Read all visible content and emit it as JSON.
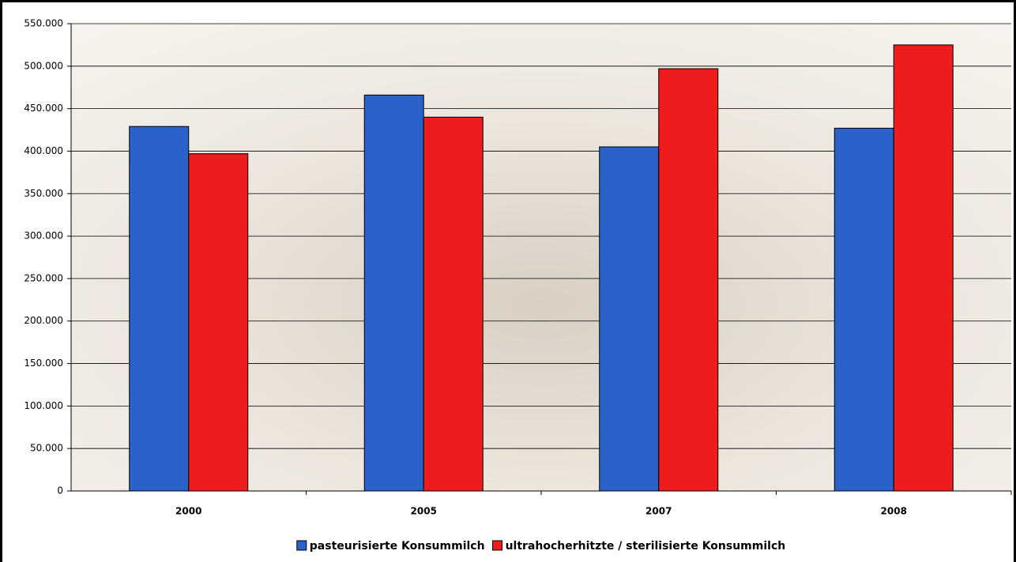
{
  "chart_data": {
    "type": "bar",
    "categories": [
      "2000",
      "2005",
      "2007",
      "2008"
    ],
    "series": [
      {
        "name": "pasteurisierte Konsummilch",
        "color": "#2a62c9",
        "values": [
          429000,
          466000,
          405000,
          427000
        ]
      },
      {
        "name": "ultrahocherhitzte / sterilisierte Konsummilch",
        "color": "#ee1c1c",
        "values": [
          397000,
          440000,
          497000,
          525000
        ]
      }
    ],
    "ylim": [
      0,
      550000
    ],
    "yticks": [
      0,
      {
        "value": 50000,
        "label": "50.000"
      },
      {
        "value": 100000,
        "label": "100.000"
      },
      {
        "value": 150000,
        "label": "150.000"
      },
      {
        "value": 200000,
        "label": "200.000"
      },
      {
        "value": 250000,
        "label": "250.000"
      },
      {
        "value": 300000,
        "label": "300.000"
      },
      {
        "value": 350000,
        "label": "350.000"
      },
      {
        "value": 400000,
        "label": "400.000"
      },
      {
        "value": 450000,
        "label": "450.000"
      },
      {
        "value": 500000,
        "label": "500.000"
      },
      {
        "value": 550000,
        "label": "550.000"
      }
    ],
    "grid": true,
    "legend": "bottom"
  }
}
